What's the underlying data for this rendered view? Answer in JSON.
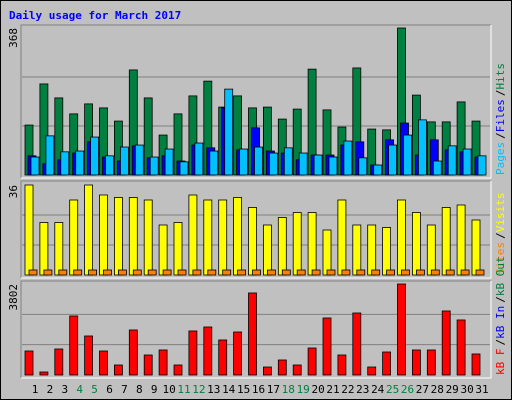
{
  "legend_separator": "/",
  "chart_data": [
    {
      "type": "bar",
      "title": "Daily usage for March 2017",
      "ylim": [
        0,
        368
      ],
      "yticks": [
        368
      ],
      "grid_divisions": 3,
      "series": [
        {
          "name": "Hits",
          "color": "#008040",
          "values": [
            125,
            228,
            193,
            153,
            178,
            168,
            135,
            263,
            193,
            100,
            153,
            198,
            235,
            170,
            198,
            168,
            170,
            140,
            165,
            265,
            163,
            120,
            268,
            115,
            113,
            368,
            200,
            133,
            133,
            183,
            135
          ]
        },
        {
          "name": "Files",
          "color": "#0000ff",
          "values": [
            48,
            28,
            38,
            55,
            83,
            45,
            35,
            73,
            43,
            48,
            35,
            75,
            68,
            168,
            63,
            118,
            60,
            55,
            38,
            50,
            50,
            75,
            83,
            25,
            88,
            130,
            50,
            88,
            63,
            58,
            45
          ]
        },
        {
          "name": "Pages",
          "color": "#00c0ff",
          "values": [
            45,
            98,
            58,
            60,
            95,
            48,
            70,
            75,
            45,
            65,
            33,
            80,
            60,
            215,
            65,
            70,
            55,
            68,
            55,
            50,
            45,
            85,
            43,
            25,
            75,
            100,
            138,
            35,
            73,
            65,
            48
          ]
        }
      ]
    },
    {
      "type": "bar",
      "ylim": [
        0,
        36
      ],
      "yticks": [
        36
      ],
      "grid_divisions": 3,
      "series": [
        {
          "name": "Visits",
          "color": "#ffff00",
          "values": [
            36,
            21,
            21,
            30,
            36,
            32,
            31,
            31,
            30,
            20,
            21,
            32,
            30,
            30,
            31,
            27,
            20,
            23,
            25,
            25,
            18,
            30,
            20,
            20,
            19,
            30,
            25,
            20,
            27,
            28,
            22
          ]
        },
        {
          "name": "Sites",
          "color": "#ff8000",
          "values": [
            2,
            2,
            2,
            2,
            2,
            2,
            2,
            2,
            2,
            2,
            2,
            2,
            2,
            2,
            2,
            2,
            2,
            2,
            2,
            2,
            2,
            2,
            2,
            2,
            2,
            2,
            2,
            2,
            2,
            2,
            2
          ]
        }
      ]
    },
    {
      "type": "bar",
      "ylim": [
        0,
        3802
      ],
      "yticks": [
        3802
      ],
      "grid_divisions": 3,
      "categories": [
        "1",
        "2",
        "3",
        "4",
        "5",
        "6",
        "7",
        "8",
        "9",
        "10",
        "11",
        "12",
        "13",
        "14",
        "15",
        "16",
        "17",
        "18",
        "19",
        "20",
        "21",
        "22",
        "23",
        "24",
        "25",
        "26",
        "27",
        "28",
        "29",
        "30",
        "31"
      ],
      "category_colors": [
        "#000000",
        "#000000",
        "#000000",
        "#008040",
        "#008040",
        "#000000",
        "#000000",
        "#000000",
        "#000000",
        "#000000",
        "#008040",
        "#008040",
        "#000000",
        "#000000",
        "#000000",
        "#000000",
        "#000000",
        "#008040",
        "#008040",
        "#000000",
        "#000000",
        "#000000",
        "#000000",
        "#000000",
        "#008040",
        "#008040",
        "#000000",
        "#000000",
        "#000000",
        "#000000",
        "#000000"
      ],
      "series": [
        {
          "name": "kB Out",
          "color": "#008040",
          "values": [
            0,
            0,
            0,
            0,
            0,
            0,
            0,
            0,
            0,
            0,
            0,
            0,
            0,
            0,
            0,
            0,
            0,
            0,
            0,
            0,
            0,
            0,
            0,
            0,
            0,
            0,
            0,
            0,
            0,
            0,
            0
          ]
        },
        {
          "name": "kB In",
          "color": "#0000ff",
          "values": [
            0,
            0,
            0,
            0,
            0,
            0,
            0,
            0,
            0,
            0,
            0,
            0,
            0,
            0,
            0,
            0,
            0,
            0,
            0,
            0,
            0,
            0,
            0,
            0,
            0,
            0,
            0,
            0,
            0,
            0,
            0
          ]
        },
        {
          "name": "kB F",
          "color": "#ff0000",
          "values": [
            1003,
            125,
            1086,
            2466,
            1630,
            1003,
            418,
            1881,
            836,
            1045,
            418,
            1839,
            2006,
            1463,
            1797,
            3427,
            334,
            627,
            418,
            1128,
            2382,
            836,
            2591,
            334,
            961,
            3802,
            1045,
            1045,
            2675,
            2299,
            878
          ]
        }
      ]
    }
  ]
}
